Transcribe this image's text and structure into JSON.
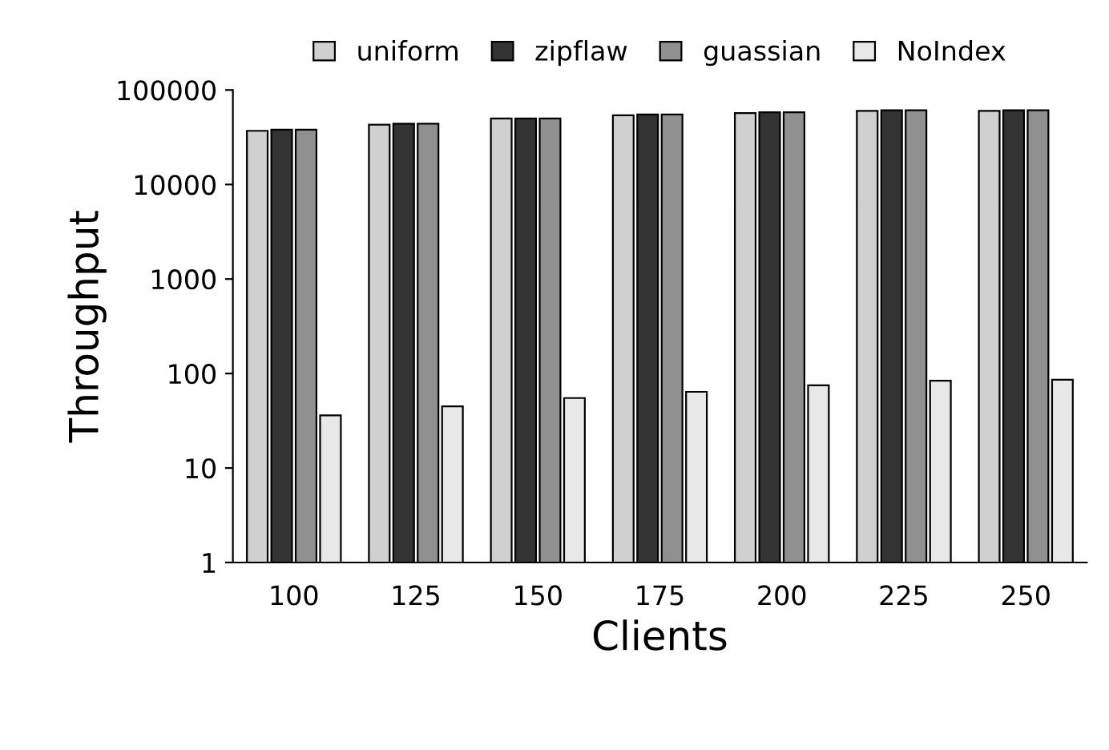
{
  "chart_data": {
    "type": "bar",
    "xlabel": "Clients",
    "ylabel": "Throughput",
    "categories": [
      "100",
      "125",
      "150",
      "175",
      "200",
      "225",
      "250"
    ],
    "series": [
      {
        "name": "uniform",
        "color": "#d0d0d0",
        "values": [
          37000,
          43000,
          50000,
          54000,
          57000,
          60000,
          60000
        ]
      },
      {
        "name": "zipflaw",
        "color": "#333333",
        "values": [
          38000,
          44000,
          50000,
          55000,
          58000,
          61000,
          61000
        ]
      },
      {
        "name": "guassian",
        "color": "#909090",
        "values": [
          38000,
          44000,
          50000,
          55000,
          58000,
          61000,
          61000
        ]
      },
      {
        "name": "NoIndex",
        "color": "#e8e8e8",
        "values": [
          36,
          45,
          55,
          64,
          75,
          84,
          86
        ]
      }
    ],
    "log": "y",
    "ylim": [
      1,
      100000
    ],
    "yticks": [
      1,
      10,
      100,
      1000,
      10000,
      100000
    ],
    "grid": false,
    "legend": "top"
  }
}
